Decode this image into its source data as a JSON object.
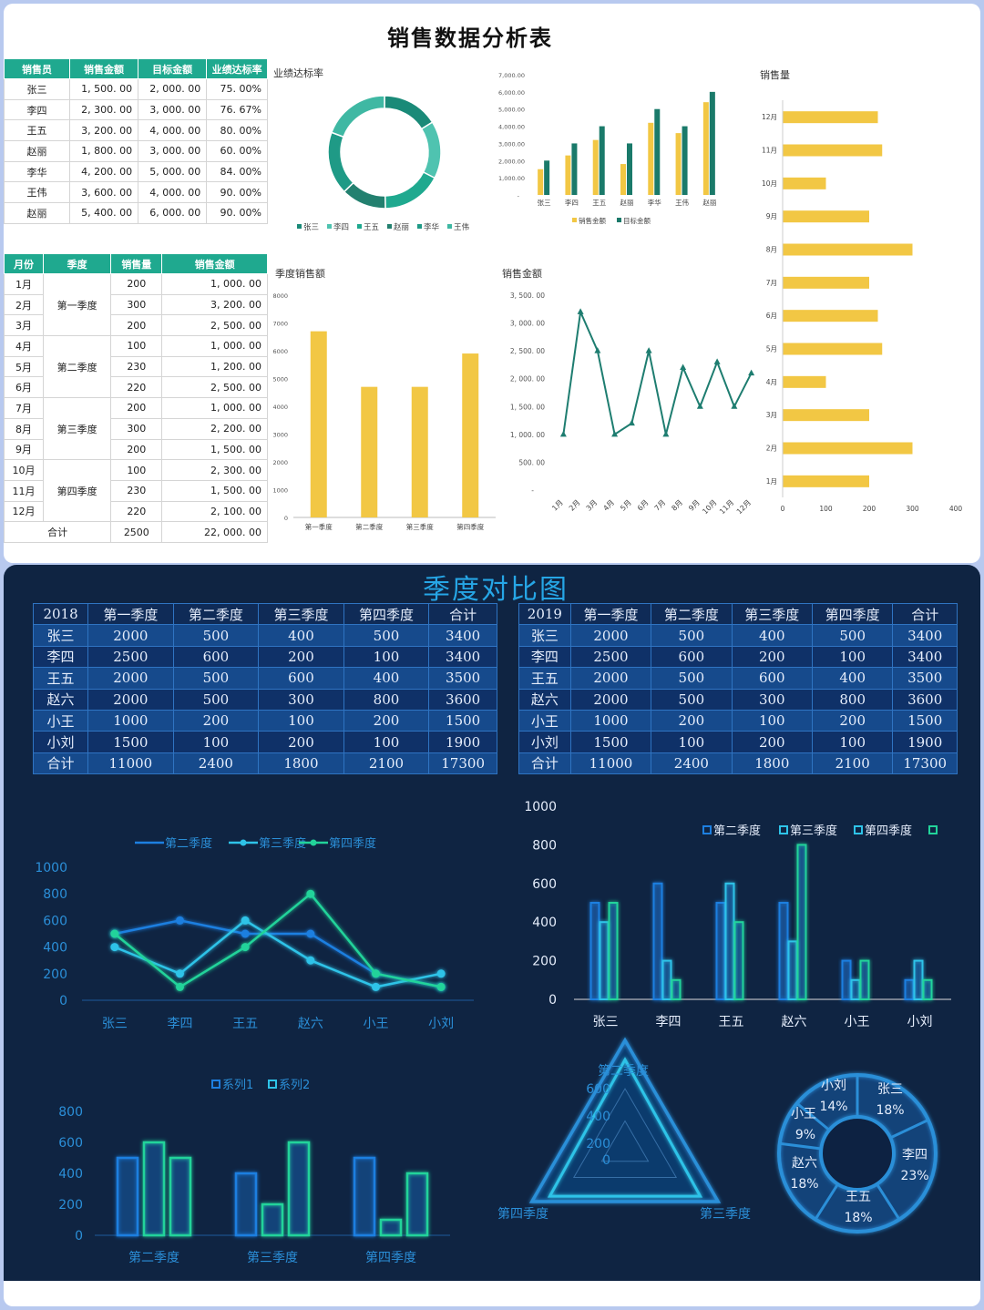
{
  "top": {
    "title": "销售数据分析表",
    "sales_table": {
      "headers": [
        "销售员",
        "销售金额",
        "目标金额",
        "业绩达标率"
      ],
      "rows": [
        [
          "张三",
          "1, 500. 00",
          "2, 000. 00",
          "75. 00%"
        ],
        [
          "李四",
          "2, 300. 00",
          "3, 000. 00",
          "76. 67%"
        ],
        [
          "王五",
          "3, 200. 00",
          "4, 000. 00",
          "80. 00%"
        ],
        [
          "赵丽",
          "1, 800. 00",
          "3, 000. 00",
          "60. 00%"
        ],
        [
          "李华",
          "4, 200. 00",
          "5, 000. 00",
          "84. 00%"
        ],
        [
          "王伟",
          "3, 600. 00",
          "4, 000. 00",
          "90. 00%"
        ],
        [
          "赵丽",
          "5, 400. 00",
          "6, 000. 00",
          "90. 00%"
        ]
      ]
    },
    "month_table": {
      "headers": [
        "月份",
        "季度",
        "销售量",
        "销售金额"
      ],
      "months": [
        "1月",
        "2月",
        "3月",
        "4月",
        "5月",
        "6月",
        "7月",
        "8月",
        "9月",
        "10月",
        "11月",
        "12月"
      ],
      "quarters": [
        "第一季度",
        "第二季度",
        "第三季度",
        "第四季度"
      ],
      "qty": [
        "200",
        "300",
        "200",
        "100",
        "230",
        "220",
        "200",
        "300",
        "200",
        "100",
        "230",
        "220"
      ],
      "amount": [
        "1, 000. 00",
        "3, 200. 00",
        "2, 500. 00",
        "1, 000. 00",
        "1, 200. 00",
        "2, 500. 00",
        "1, 000. 00",
        "2, 200. 00",
        "1, 500. 00",
        "2, 300. 00",
        "1, 500. 00",
        "2, 100. 00"
      ],
      "total_label": "合计",
      "total_qty": "2500",
      "total_amount": "22, 000. 00"
    },
    "colors": {
      "teal": "#1fa98f",
      "dark_teal": "#1a7a6a",
      "yellow": "#f2c744",
      "line": "#1e7d70"
    }
  },
  "bottom": {
    "title": "季度对比图",
    "table2018": {
      "headers": [
        "2018",
        "第一季度",
        "第二季度",
        "第三季度",
        "第四季度",
        "合计"
      ],
      "rows": [
        [
          "张三",
          "2000",
          "500",
          "400",
          "500",
          "3400"
        ],
        [
          "李四",
          "2500",
          "600",
          "200",
          "100",
          "3400"
        ],
        [
          "王五",
          "2000",
          "500",
          "600",
          "400",
          "3500"
        ],
        [
          "赵六",
          "2000",
          "500",
          "300",
          "800",
          "3600"
        ],
        [
          "小王",
          "1000",
          "200",
          "100",
          "200",
          "1500"
        ],
        [
          "小刘",
          "1500",
          "100",
          "200",
          "100",
          "1900"
        ],
        [
          "合计",
          "11000",
          "2400",
          "1800",
          "2100",
          "17300"
        ]
      ]
    },
    "table2019": {
      "headers": [
        "2019",
        "第一季度",
        "第二季度",
        "第三季度",
        "第四季度",
        "合计"
      ],
      "rows": [
        [
          "张三",
          "2000",
          "500",
          "400",
          "500",
          "3400"
        ],
        [
          "李四",
          "2500",
          "600",
          "200",
          "100",
          "3400"
        ],
        [
          "王五",
          "2000",
          "500",
          "600",
          "400",
          "3500"
        ],
        [
          "赵六",
          "2000",
          "500",
          "300",
          "800",
          "3600"
        ],
        [
          "小王",
          "1000",
          "200",
          "100",
          "200",
          "1500"
        ],
        [
          "小刘",
          "1500",
          "100",
          "200",
          "100",
          "1900"
        ],
        [
          "合计",
          "11000",
          "2400",
          "1800",
          "2100",
          "17300"
        ]
      ]
    },
    "colors": {
      "blue": "#1d7fe0",
      "cyan": "#2ec3e8",
      "green": "#22d39a",
      "text": "#2b8fd8",
      "bg": "#0f2442"
    }
  },
  "chart_data": [
    {
      "type": "pie",
      "title": "业绩达标率",
      "categories": [
        "张三",
        "李四",
        "王五",
        "赵丽",
        "李华",
        "王伟"
      ],
      "values": [
        75,
        76.67,
        80,
        60,
        84,
        90
      ]
    },
    {
      "type": "bar",
      "title": "",
      "categories": [
        "张三",
        "李四",
        "王五",
        "赵丽",
        "李华",
        "王伟",
        "赵丽"
      ],
      "series": [
        {
          "name": "销售金额",
          "values": [
            1500,
            2300,
            3200,
            1800,
            4200,
            3600,
            5400
          ]
        },
        {
          "name": "目标金额",
          "values": [
            2000,
            3000,
            4000,
            3000,
            5000,
            4000,
            6000
          ]
        }
      ],
      "yticks": [
        "-",
        "1,000.00",
        "2,000.00",
        "3,000.00",
        "4,000.00",
        "5,000.00",
        "6,000.00",
        "7,000.00"
      ],
      "ylim": [
        0,
        7000
      ]
    },
    {
      "type": "bar",
      "orientation": "horizontal",
      "title": "销售量",
      "categories": [
        "1月",
        "2月",
        "3月",
        "4月",
        "5月",
        "6月",
        "7月",
        "8月",
        "9月",
        "10月",
        "11月",
        "12月"
      ],
      "values": [
        200,
        300,
        200,
        100,
        230,
        220,
        200,
        300,
        200,
        100,
        230,
        220
      ],
      "xticks": [
        "0",
        "100",
        "200",
        "300",
        "400"
      ],
      "xlim": [
        0,
        400
      ]
    },
    {
      "type": "bar",
      "title": "季度销售额",
      "categories": [
        "第一季度",
        "第二季度",
        "第三季度",
        "第四季度"
      ],
      "values": [
        6700,
        4700,
        4700,
        5900
      ],
      "yticks": [
        "0",
        "1000",
        "2000",
        "3000",
        "4000",
        "5000",
        "6000",
        "7000",
        "8000"
      ],
      "ylim": [
        0,
        8000
      ]
    },
    {
      "type": "line",
      "title": "销售金额",
      "categories": [
        "1月",
        "2月",
        "3月",
        "4月",
        "5月",
        "6月",
        "7月",
        "8月",
        "9月",
        "10月",
        "11月",
        "12月"
      ],
      "values": [
        1000,
        3200,
        2500,
        1000,
        1200,
        2500,
        1000,
        2200,
        1500,
        2300,
        1500,
        2100
      ],
      "yticks": [
        "-",
        "500. 00",
        "1, 000. 00",
        "1, 500. 00",
        "2, 000. 00",
        "2, 500. 00",
        "3, 000. 00",
        "3, 500. 00"
      ],
      "ylim": [
        0,
        3500
      ]
    },
    {
      "type": "line",
      "title": "",
      "legend": [
        "第二季度",
        "第三季度",
        "第四季度"
      ],
      "categories": [
        "张三",
        "李四",
        "王五",
        "赵六",
        "小王",
        "小刘"
      ],
      "series": [
        {
          "name": "第二季度",
          "values": [
            500,
            600,
            500,
            500,
            200,
            100
          ]
        },
        {
          "name": "第三季度",
          "values": [
            400,
            200,
            600,
            300,
            100,
            200
          ]
        },
        {
          "name": "第四季度",
          "values": [
            500,
            100,
            400,
            800,
            200,
            100
          ]
        }
      ],
      "yticks": [
        "0",
        "200",
        "400",
        "600",
        "800",
        "1000"
      ],
      "ylim": [
        0,
        1000
      ]
    },
    {
      "type": "bar",
      "title": "",
      "legend": [
        "第二季度",
        "第三季度",
        "第四季度",
        ""
      ],
      "categories": [
        "张三",
        "李四",
        "王五",
        "赵六",
        "小王",
        "小刘"
      ],
      "series": [
        {
          "name": "第二季度",
          "values": [
            500,
            600,
            500,
            500,
            200,
            100
          ]
        },
        {
          "name": "第三季度",
          "values": [
            400,
            200,
            600,
            300,
            100,
            200
          ]
        },
        {
          "name": "第四季度",
          "values": [
            500,
            100,
            400,
            800,
            200,
            100
          ]
        }
      ],
      "yticks": [
        "0",
        "200",
        "400",
        "600",
        "800",
        "1000"
      ],
      "ylim": [
        0,
        1000
      ]
    },
    {
      "type": "bar",
      "title": "",
      "legend": [
        "系列1",
        "系列2"
      ],
      "categories": [
        "第二季度",
        "第三季度",
        "第四季度"
      ],
      "series": [
        {
          "name": "系列1",
          "values": [
            500,
            400,
            500
          ]
        },
        {
          "name": "系列2",
          "values": [
            [
              600,
              500
            ],
            [
              200,
              600
            ],
            [
              100,
              400
            ]
          ]
        }
      ],
      "yticks": [
        "0",
        "200",
        "400",
        "600",
        "800"
      ],
      "ylim": [
        0,
        800
      ]
    },
    {
      "type": "radar",
      "title": "",
      "axes": [
        "第二季度",
        "第三季度",
        "第四季度"
      ],
      "ticks": [
        "0",
        "200",
        "400",
        "600"
      ],
      "values": [
        600,
        600,
        600
      ]
    },
    {
      "type": "pie",
      "title": "",
      "categories": [
        "张三",
        "李四",
        "王五",
        "赵六",
        "小王",
        "小刘"
      ],
      "percent_labels": [
        "18%",
        "23%",
        "18%",
        "18%",
        "9%",
        "14%"
      ],
      "values": [
        18,
        23,
        18,
        18,
        9,
        14
      ]
    }
  ]
}
